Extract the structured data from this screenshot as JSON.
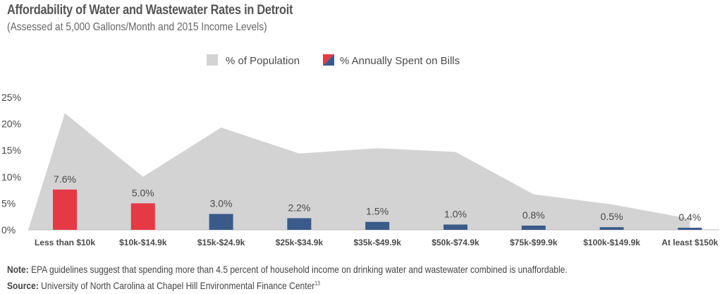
{
  "title": "Affordability of Water and Wastewater Rates in Detroit",
  "subtitle": "(Assessed at 5,000 Gallons/Month and 2015 Income Levels)",
  "note_label": "Note:",
  "note_text": " EPA guidelines suggest that spending more than 4.5 percent of household income on drinking water and wastewater combined is unaffordable.",
  "source_label": "Source:",
  "source_text": " University of North Carolina at Chapel Hill Environmental Finance Center",
  "source_ref": "13",
  "colors": {
    "population_area": "#d3d3d4",
    "bar_unaffordable": "#e63946",
    "bar_affordable": "#3a5a8a",
    "axis_text": "#4a4a4a"
  },
  "chart_data": {
    "type": "bar",
    "categories": [
      "Less than $10k",
      "$10k-$14.9k",
      "$15k-$24.9k",
      "$25k-$34.9k",
      "$35k-$49.9k",
      "$50k-$74.9k",
      "$75k-$99.9k",
      "$100k-$149.9k",
      "At least $150k"
    ],
    "series": [
      {
        "name": "% of Population",
        "kind": "area",
        "values": [
          22.0,
          10.0,
          19.3,
          14.4,
          15.4,
          14.7,
          6.7,
          4.8,
          2.1
        ]
      },
      {
        "name": "% Annually Spent on Bills",
        "kind": "bar",
        "values": [
          7.6,
          5.0,
          3.0,
          2.2,
          1.5,
          1.0,
          0.8,
          0.5,
          0.4
        ],
        "labels": [
          "7.6%",
          "5.0%",
          "3.0%",
          "2.2%",
          "1.5%",
          "1.0%",
          "0.8%",
          "0.5%",
          "0.4%"
        ],
        "unaffordable_threshold": 4.5
      }
    ],
    "ylim": [
      0,
      25
    ],
    "yticks": [
      0,
      5,
      10,
      15,
      20,
      25
    ],
    "ytick_labels": [
      "0%",
      "5%",
      "10%",
      "15%",
      "20%",
      "25%"
    ],
    "legend_position": "top-center",
    "grid": false
  }
}
